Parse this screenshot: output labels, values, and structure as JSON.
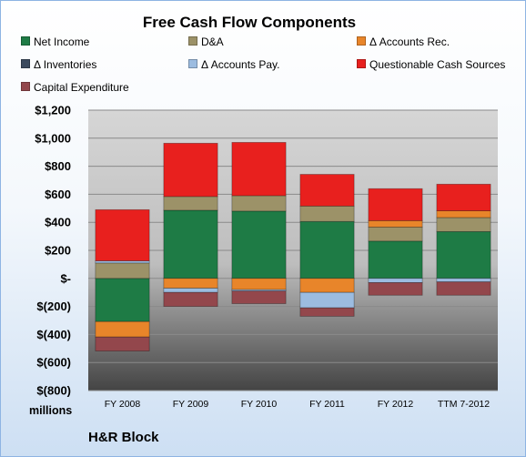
{
  "chart_data": {
    "type": "bar",
    "title": "Free Cash Flow Components",
    "units_label": "millions",
    "company": "H&R Block",
    "categories": [
      "FY 2008",
      "FY 2009",
      "FY 2010",
      "FY 2011",
      "FY 2012",
      "TTM 7-2012"
    ],
    "ylim": [
      -800,
      1200
    ],
    "yticks": [
      -800,
      -600,
      -400,
      -200,
      0,
      200,
      400,
      600,
      800,
      1000,
      1200
    ],
    "ytick_labels": [
      "$(800)",
      "$(600)",
      "$(400)",
      "$(200)",
      "$-",
      "$200",
      "$400",
      "$600",
      "$800",
      "$1,000",
      "$1,200"
    ],
    "grid": true,
    "legend_position": "top",
    "stacked": true,
    "series": [
      {
        "name": "Net Income",
        "color": "#1e7b45",
        "values": [
          -308,
          486,
          480,
          406,
          266,
          334
        ]
      },
      {
        "name": "D&A",
        "color": "#9c9268",
        "values": [
          110,
          98,
          110,
          110,
          100,
          100
        ]
      },
      {
        "name": "Δ Accounts Rec.",
        "color": "#e8852a",
        "values": [
          -110,
          -70,
          -80,
          -100,
          46,
          48
        ]
      },
      {
        "name": "Δ Inventories",
        "color": "#3b4a5e",
        "values": [
          0,
          0,
          0,
          0,
          0,
          0
        ]
      },
      {
        "name": "Δ Accounts Pay.",
        "color": "#9cbce0",
        "values": [
          15,
          -30,
          -10,
          -110,
          -30,
          -25
        ]
      },
      {
        "name": "Questionable Cash Sources",
        "color": "#e8201e",
        "values": [
          365,
          380,
          380,
          226,
          228,
          190
        ]
      },
      {
        "name": "Capital Expenditure",
        "color": "#93474c",
        "values": [
          -100,
          -100,
          -90,
          -60,
          -90,
          -95
        ]
      }
    ]
  }
}
